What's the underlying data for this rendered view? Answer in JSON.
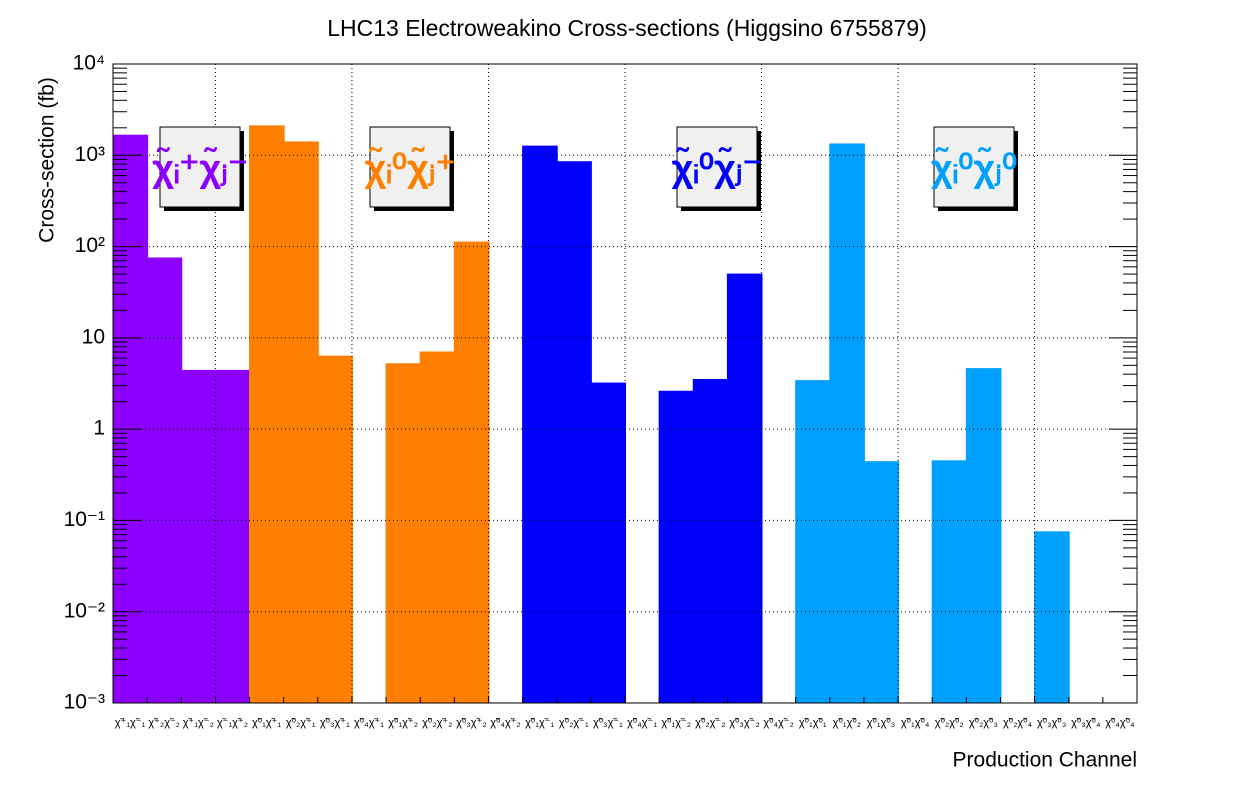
{
  "chart_data": {
    "type": "bar",
    "title": "LHC13 Electroweakino Cross-sections (Higgsino 6755879)",
    "y_label": "Cross-section (fb)",
    "x_label": "Production Channel",
    "log_y": true,
    "grid": true,
    "ylim": [
      0.001,
      10000
    ],
    "yticks": [
      {
        "value": 0.001,
        "label": "10⁻³"
      },
      {
        "value": 0.01,
        "label": "10⁻²"
      },
      {
        "value": 0.1,
        "label": "10⁻¹"
      },
      1,
      10,
      {
        "value": 100,
        "label": "10²"
      },
      {
        "value": 1000,
        "label": "10³"
      },
      {
        "value": 10000,
        "label": "10⁴"
      }
    ],
    "categories": [
      "χ̃⁺₁χ̃⁻₁",
      "χ̃⁺₂χ̃⁻₂",
      "χ̃⁺₁χ̃⁻₂",
      "χ̃⁻₁χ̃⁺₂",
      "χ̃⁰₁χ̃⁺₁",
      "χ̃⁰₂χ̃⁺₁",
      "χ̃⁰₃χ̃⁺₁",
      "χ̃⁰₄χ̃⁺₁",
      "χ̃⁰₁χ̃⁺₂",
      "χ̃⁰₂χ̃⁺₂",
      "χ̃⁰₃χ̃⁺₂",
      "χ̃⁰₄χ̃⁺₂",
      "χ̃⁰₁χ̃⁻₁",
      "χ̃⁰₂χ̃⁻₁",
      "χ̃⁰₃χ̃⁻₁",
      "χ̃⁰₄χ̃⁻₁",
      "χ̃⁰₁χ̃⁻₂",
      "χ̃⁰₂χ̃⁻₂",
      "χ̃⁰₃χ̃⁻₂",
      "χ̃⁰₄χ̃⁻₂",
      "χ̃⁰₁χ̃⁰₁",
      "χ̃⁰₁χ̃⁰₂",
      "χ̃⁰₁χ̃⁰₃",
      "χ̃⁰₁χ̃⁰₄",
      "χ̃⁰₂χ̃⁰₂",
      "χ̃⁰₂χ̃⁰₃",
      "χ̃⁰₂χ̃⁰₄",
      "χ̃⁰₃χ̃⁰₃",
      "χ̃⁰₃χ̃⁰₄",
      "χ̃⁰₄χ̃⁰₄"
    ],
    "values": [
      1660,
      75,
      4.4,
      4.4,
      2100,
      1400,
      6.3,
      null,
      5.2,
      7.0,
      112,
      null,
      1260,
      850,
      3.2,
      null,
      2.6,
      3.5,
      50,
      null,
      3.4,
      1330,
      0.44,
      null,
      0.45,
      4.6,
      null,
      0.075,
      null,
      null
    ],
    "bar_colors": [
      "#8c00ff",
      "#8c00ff",
      "#8c00ff",
      "#8c00ff",
      "#ff7f00",
      "#ff7f00",
      "#ff7f00",
      "#ff7f00",
      "#ff7f00",
      "#ff7f00",
      "#ff7f00",
      "#ff7f00",
      "#0000ff",
      "#0000ff",
      "#0000ff",
      "#0000ff",
      "#0000ff",
      "#0000ff",
      "#0000ff",
      "#0000ff",
      "#00a0ff",
      "#00a0ff",
      "#00a0ff",
      "#00a0ff",
      "#00a0ff",
      "#00a0ff",
      "#00a0ff",
      "#00a0ff",
      "#00a0ff",
      "#00a0ff"
    ],
    "group_labels": [
      {
        "label": "χ̃ᵢ⁺χ̃ⱼ⁻",
        "color": "#8c00ff"
      },
      {
        "label": "χ̃ᵢ⁰χ̃ⱼ⁺",
        "color": "#ff7f00"
      },
      {
        "label": "χ̃ᵢ⁰χ̃ⱼ⁻",
        "color": "#0000ff"
      },
      {
        "label": "χ̃ᵢ⁰χ̃ⱼ⁰",
        "color": "#00a0ff"
      }
    ]
  }
}
